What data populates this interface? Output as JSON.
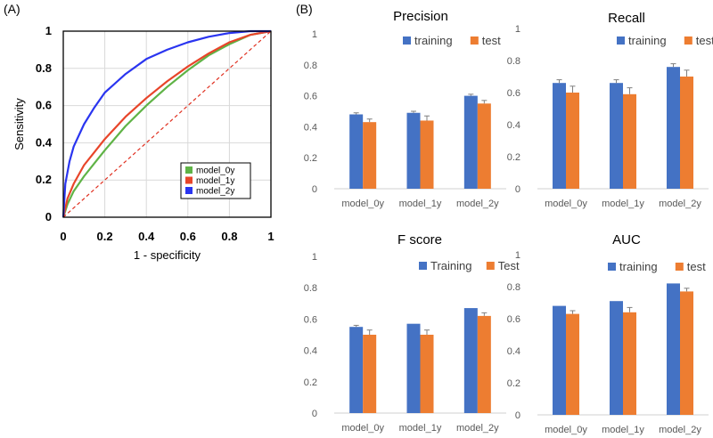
{
  "panels": {
    "a_label": "(A)",
    "b_label": "(B)"
  },
  "colors": {
    "training": "#4472C4",
    "test": "#ED7D31",
    "model_0y": "#5FB346",
    "model_1y": "#E8452A",
    "model_2y": "#2A35F0",
    "diagonal": "#E03020",
    "errorbar": "#808080"
  },
  "chart_data": [
    {
      "id": "roc",
      "type": "line",
      "title": "",
      "xlabel": "1 - specificity",
      "ylabel": "Sensitivity",
      "xlim": [
        0,
        1
      ],
      "ylim": [
        0,
        1
      ],
      "xticks": [
        "0",
        "0.2",
        "0.4",
        "0.6",
        "0.8",
        "1"
      ],
      "yticks": [
        "0",
        "0.2",
        "0.4",
        "0.6",
        "0.8",
        "1"
      ],
      "legend": [
        "model_0y",
        "model_1y",
        "model_2y"
      ],
      "legend_position": "bottom-right",
      "series": [
        {
          "name": "model_0y",
          "color": "#5FB346",
          "x": [
            0,
            0.02,
            0.05,
            0.1,
            0.15,
            0.2,
            0.3,
            0.4,
            0.5,
            0.6,
            0.7,
            0.8,
            0.9,
            1.0
          ],
          "y": [
            0,
            0.07,
            0.14,
            0.22,
            0.29,
            0.36,
            0.49,
            0.6,
            0.7,
            0.79,
            0.87,
            0.93,
            0.98,
            1.0
          ]
        },
        {
          "name": "model_1y",
          "color": "#E8452A",
          "x": [
            0,
            0.02,
            0.05,
            0.1,
            0.15,
            0.2,
            0.3,
            0.4,
            0.5,
            0.6,
            0.7,
            0.8,
            0.9,
            1.0
          ],
          "y": [
            0,
            0.1,
            0.18,
            0.28,
            0.35,
            0.42,
            0.54,
            0.64,
            0.73,
            0.81,
            0.88,
            0.94,
            0.98,
            1.0
          ]
        },
        {
          "name": "model_2y",
          "color": "#2A35F0",
          "x": [
            0,
            0.01,
            0.03,
            0.05,
            0.1,
            0.15,
            0.2,
            0.3,
            0.4,
            0.5,
            0.6,
            0.7,
            0.8,
            0.9,
            1.0
          ],
          "y": [
            0,
            0.18,
            0.3,
            0.38,
            0.5,
            0.59,
            0.67,
            0.77,
            0.85,
            0.9,
            0.94,
            0.97,
            0.99,
            1.0,
            1.0
          ]
        },
        {
          "name": "reference",
          "color": "#E03020",
          "dashed": true,
          "x": [
            0,
            1
          ],
          "y": [
            0,
            1
          ]
        }
      ]
    },
    {
      "id": "precision",
      "type": "bar",
      "title": "Precision",
      "categories": [
        "model_0y",
        "model_1y",
        "model_2y"
      ],
      "ylim": [
        0,
        1
      ],
      "yticks": [
        "0",
        "0.2",
        "0.4",
        "0.6",
        "0.8",
        "1"
      ],
      "legend": [
        "training",
        "test"
      ],
      "legend_position": "top-right",
      "series": [
        {
          "name": "training",
          "values": [
            0.48,
            0.49,
            0.6
          ],
          "errors": [
            0.01,
            0.01,
            0.01
          ]
        },
        {
          "name": "test",
          "values": [
            0.43,
            0.44,
            0.55
          ],
          "errors": [
            0.02,
            0.03,
            0.02
          ]
        }
      ]
    },
    {
      "id": "recall",
      "type": "bar",
      "title": "Recall",
      "categories": [
        "model_0y",
        "model_1y",
        "model_2y"
      ],
      "ylim": [
        0,
        1
      ],
      "yticks": [
        "0",
        "0.2",
        "0.4",
        "0.6",
        "0.8",
        "1"
      ],
      "legend": [
        "training",
        "test"
      ],
      "legend_position": "top-right",
      "series": [
        {
          "name": "training",
          "values": [
            0.66,
            0.66,
            0.76
          ],
          "errors": [
            0.02,
            0.02,
            0.02
          ]
        },
        {
          "name": "test",
          "values": [
            0.6,
            0.59,
            0.7
          ],
          "errors": [
            0.04,
            0.04,
            0.04
          ]
        }
      ]
    },
    {
      "id": "fscore",
      "type": "bar",
      "title": "F score",
      "categories": [
        "model_0y",
        "model_1y",
        "model_2y"
      ],
      "ylim": [
        0,
        1
      ],
      "yticks": [
        "0",
        "0.2",
        "0.4",
        "0.6",
        "0.8",
        "1"
      ],
      "legend": [
        "Training",
        "Test"
      ],
      "legend_position": "top-right",
      "series": [
        {
          "name": "Training",
          "values": [
            0.55,
            0.57,
            0.67
          ],
          "errors": [
            0.01,
            0.0,
            0.0
          ]
        },
        {
          "name": "Test",
          "values": [
            0.5,
            0.5,
            0.62
          ],
          "errors": [
            0.03,
            0.03,
            0.02
          ]
        }
      ]
    },
    {
      "id": "auc",
      "type": "bar",
      "title": "AUC",
      "categories": [
        "model_0y",
        "model_1y",
        "model_2y"
      ],
      "ylim": [
        0,
        1
      ],
      "yticks": [
        "0",
        "0.2",
        "0.4",
        "0.6",
        "0.8",
        "1"
      ],
      "legend": [
        "training",
        "test"
      ],
      "legend_position": "top-right",
      "series": [
        {
          "name": "training",
          "values": [
            0.68,
            0.71,
            0.82
          ],
          "errors": [
            0.0,
            0.0,
            0.0
          ]
        },
        {
          "name": "test",
          "values": [
            0.63,
            0.64,
            0.77
          ],
          "errors": [
            0.02,
            0.03,
            0.02
          ]
        }
      ]
    }
  ]
}
